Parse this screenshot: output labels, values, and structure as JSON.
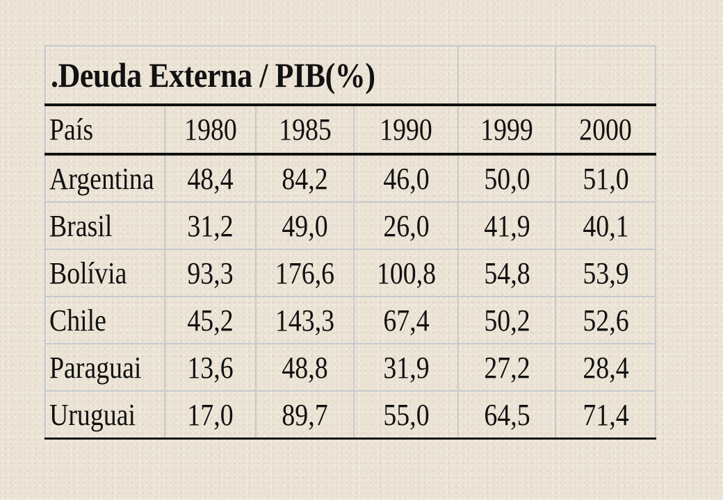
{
  "table": {
    "title": ".Deuda Externa / PIB(%)",
    "headers": [
      "País",
      "1980",
      "1985",
      "1990",
      "1999",
      "2000"
    ],
    "rows": [
      {
        "country": "Argentina",
        "values": [
          "48,4",
          "84,2",
          "46,0",
          "50,0",
          "51,0"
        ]
      },
      {
        "country": "Brasil",
        "values": [
          "31,2",
          "49,0",
          "26,0",
          "41,9",
          "40,1"
        ]
      },
      {
        "country": "Bolívia",
        "values": [
          "93,3",
          "176,6",
          "100,8",
          "54,8",
          "53,9"
        ]
      },
      {
        "country": "Chile",
        "values": [
          "45,2",
          "143,3",
          "67,4",
          "50,2",
          "52,6"
        ]
      },
      {
        "country": "Paraguai",
        "values": [
          "13,6",
          "48,8",
          "31,9",
          "27,2",
          "28,4"
        ]
      },
      {
        "country": "Uruguai",
        "values": [
          "17,0",
          "89,7",
          "55,0",
          "64,5",
          "71,4"
        ]
      }
    ]
  }
}
